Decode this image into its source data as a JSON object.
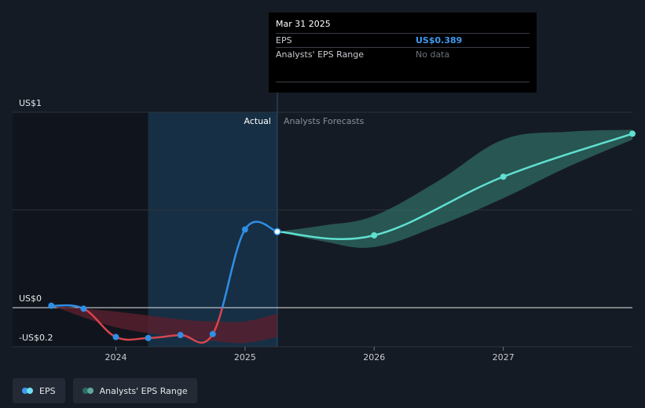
{
  "tooltip": {
    "date": "Mar 31 2025",
    "rows": [
      {
        "label": "EPS",
        "value": "US$0.389"
      },
      {
        "label": "Analysts' EPS Range",
        "value": "No data"
      }
    ]
  },
  "chart_data": {
    "type": "line",
    "ylim": [
      -0.2,
      1.0
    ],
    "y_tick_labels": [
      {
        "value": 1.0,
        "label": "US$1"
      },
      {
        "value": 0.0,
        "label": "US$0"
      },
      {
        "value": -0.2,
        "label": "-US$0.2"
      }
    ],
    "x_ticks": [
      {
        "value": 2024.0,
        "label": "2024"
      },
      {
        "value": 2025.0,
        "label": "2025"
      },
      {
        "value": 2026.0,
        "label": "2026"
      },
      {
        "value": 2027.0,
        "label": "2027"
      }
    ],
    "xlim": [
      2023.2,
      2028.0
    ],
    "region_labels": {
      "actual": "Actual",
      "forecast": "Analysts Forecasts"
    },
    "divider_x": 2025.25,
    "series": [
      {
        "name": "EPS",
        "kind": "actual",
        "points": [
          {
            "x": 2023.5,
            "y": 0.01
          },
          {
            "x": 2023.75,
            "y": -0.005
          },
          {
            "x": 2024.0,
            "y": -0.15
          },
          {
            "x": 2024.25,
            "y": -0.155
          },
          {
            "x": 2024.5,
            "y": -0.14
          },
          {
            "x": 2024.75,
            "y": -0.135
          },
          {
            "x": 2025.0,
            "y": 0.4
          },
          {
            "x": 2025.25,
            "y": 0.389
          }
        ]
      },
      {
        "name": "Analysts' EPS Range",
        "kind": "forecast",
        "points": [
          {
            "x": 2025.25,
            "y": 0.389
          },
          {
            "x": 2026.0,
            "y": 0.37
          },
          {
            "x": 2027.0,
            "y": 0.67
          },
          {
            "x": 2028.0,
            "y": 0.89
          }
        ]
      }
    ],
    "forecast_range": {
      "x": [
        2025.25,
        2025.6,
        2026.0,
        2026.5,
        2027.0,
        2027.5,
        2028.0
      ],
      "low": [
        0.389,
        0.34,
        0.31,
        0.42,
        0.56,
        0.72,
        0.86
      ],
      "high": [
        0.389,
        0.42,
        0.47,
        0.65,
        0.86,
        0.9,
        0.91
      ]
    },
    "actual_range": {
      "x": [
        2023.5,
        2024.0,
        2024.5,
        2024.75,
        2025.0,
        2025.25
      ],
      "low": [
        0.01,
        -0.1,
        -0.15,
        -0.17,
        -0.18,
        -0.15
      ],
      "high": [
        0.01,
        -0.02,
        -0.06,
        -0.07,
        -0.07,
        -0.03
      ]
    },
    "colors": {
      "eps_positive": "#2f8fe6",
      "eps_negative": "#d9444d",
      "forecast": "#5fe0d0",
      "forecast_band": "#2f6b62",
      "negative_band": "#5a1f2e",
      "highlight": "#17324a"
    }
  },
  "legend": {
    "items": [
      {
        "label": "EPS",
        "color_a": "#3e9bf0",
        "color_b": "#6fe0f2"
      },
      {
        "label": "Analysts' EPS Range",
        "color_a": "#2f6b62",
        "color_b": "#5fa89c"
      }
    ]
  }
}
